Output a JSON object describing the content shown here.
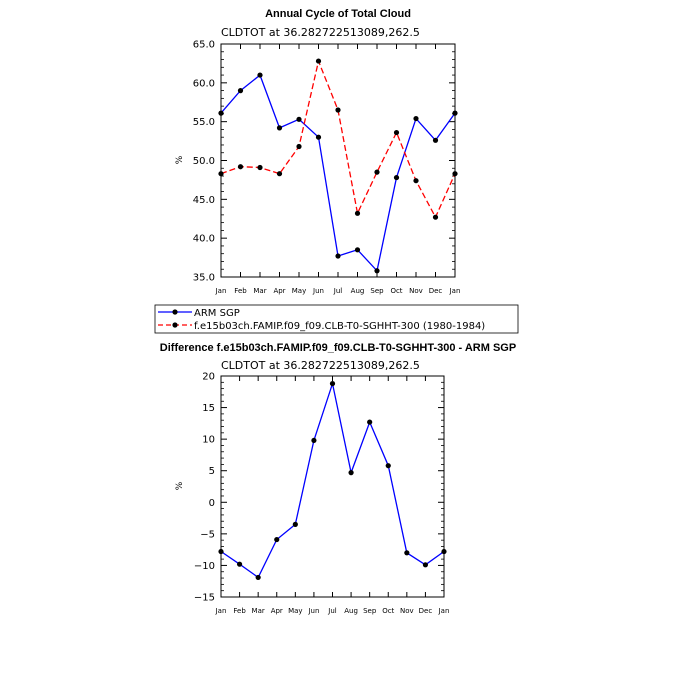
{
  "chart_data": [
    {
      "type": "line",
      "title": "Annual Cycle of Total Cloud",
      "subtitle": "CLDTOT at 36.282722513089,262.5",
      "xlabel": "",
      "ylabel": "%",
      "categories": [
        "Jan",
        "Feb",
        "Mar",
        "Apr",
        "May",
        "Jun",
        "Jul",
        "Aug",
        "Sep",
        "Oct",
        "Nov",
        "Dec",
        "Jan"
      ],
      "ylim": [
        35.0,
        65.0
      ],
      "yticks": [
        35.0,
        40.0,
        45.0,
        50.0,
        55.0,
        60.0,
        65.0
      ],
      "ytick_labels": [
        "35.0",
        "40.0",
        "45.0",
        "50.0",
        "55.0",
        "60.0",
        "65.0"
      ],
      "series": [
        {
          "name": "ARM SGP",
          "color": "#0000ff",
          "dash": "solid",
          "values": [
            56.1,
            59.0,
            61.0,
            54.2,
            55.3,
            53.0,
            37.7,
            38.5,
            35.8,
            47.8,
            55.4,
            52.6,
            56.1
          ]
        },
        {
          "name": "f.e15b03ch.FAMIP.f09_f09.CLB-T0-SGHHT-300 (1980-1984)",
          "color": "#ff0000",
          "dash": "dashed",
          "values": [
            48.3,
            49.2,
            49.1,
            48.3,
            51.8,
            62.8,
            56.5,
            43.2,
            48.5,
            53.6,
            47.4,
            42.7,
            48.3
          ]
        }
      ],
      "legend": {
        "placement": "below",
        "entries": [
          "ARM SGP",
          "f.e15b03ch.FAMIP.f09_f09.CLB-T0-SGHHT-300 (1980-1984)"
        ]
      }
    },
    {
      "type": "line",
      "title": "Difference f.e15b03ch.FAMIP.f09_f09.CLB-T0-SGHHT-300 - ARM SGP",
      "subtitle": "CLDTOT at 36.282722513089,262.5",
      "xlabel": "",
      "ylabel": "%",
      "categories": [
        "Jan",
        "Feb",
        "Mar",
        "Apr",
        "May",
        "Jun",
        "Jul",
        "Aug",
        "Sep",
        "Oct",
        "Nov",
        "Dec",
        "Jan"
      ],
      "ylim": [
        -15,
        20
      ],
      "yticks": [
        -15,
        -10,
        -5,
        0,
        5,
        10,
        15,
        20
      ],
      "ytick_labels": [
        "−15",
        "−10",
        "−5",
        "0",
        "5",
        "10",
        "15",
        "20"
      ],
      "series": [
        {
          "name": "Difference",
          "color": "#0000ff",
          "dash": "solid",
          "values": [
            -7.8,
            -9.8,
            -11.9,
            -5.9,
            -3.5,
            9.8,
            18.8,
            4.7,
            12.7,
            5.8,
            -8.0,
            -9.9,
            -7.8
          ]
        }
      ]
    }
  ]
}
